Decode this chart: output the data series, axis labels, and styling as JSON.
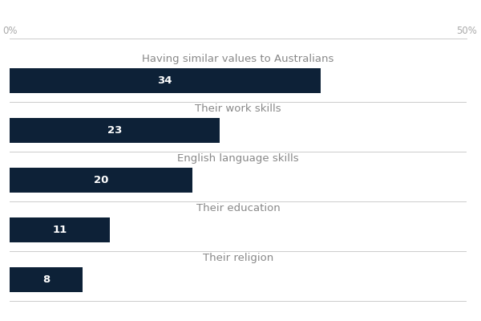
{
  "categories": [
    "Having similar values to Australians",
    "Their work skills",
    "English language skills",
    "Their education",
    "Their religion"
  ],
  "values": [
    34,
    23,
    20,
    11,
    8
  ],
  "bar_color": "#0d2137",
  "label_color": "#ffffff",
  "label_fontsize": 9.5,
  "category_fontsize": 9.5,
  "category_color": "#888888",
  "tick_color": "#aaaaaa",
  "tick_fontsize": 8.5,
  "xlim": [
    0,
    50
  ],
  "xtick_labels": [
    "0%",
    "50%"
  ],
  "bar_height": 0.5,
  "separator_color": "#cccccc",
  "background_color": "#ffffff",
  "fig_width": 6.0,
  "fig_height": 4.0,
  "dpi": 100
}
